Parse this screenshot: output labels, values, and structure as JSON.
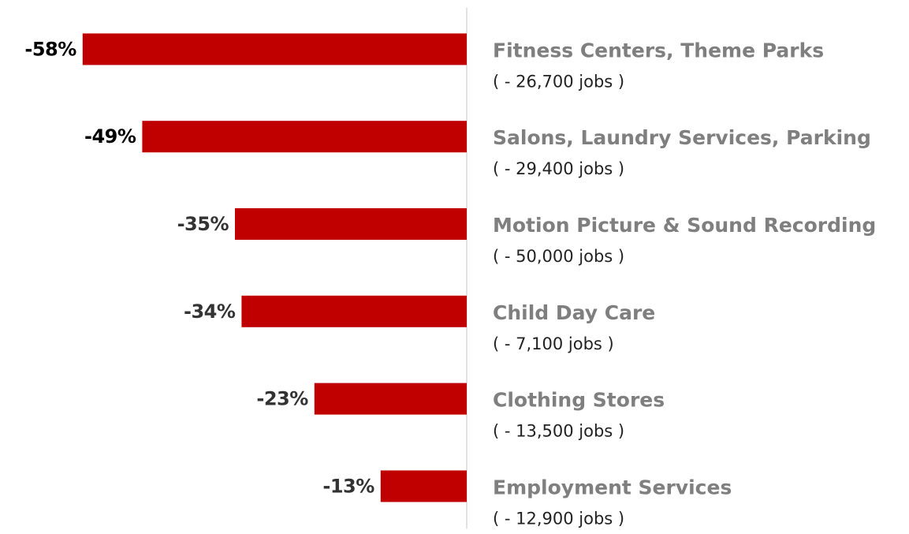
{
  "chart_data": {
    "type": "bar",
    "orientation": "horizontal",
    "categories": [
      "Fitness Centers, Theme Parks",
      "Salons, Laundry Services, Parking",
      "Motion Picture & Sound Recording",
      "Child Day Care",
      "Clothing Stores",
      "Employment Services"
    ],
    "sublabels": [
      "( - 26,700 jobs )",
      "( - 29,400 jobs )",
      "( - 50,000 jobs )",
      "( - 7,100 jobs )",
      "( - 13,500 jobs )",
      "( - 12,900 jobs )"
    ],
    "values": [
      -58,
      -49,
      -35,
      -34,
      -23,
      -13
    ],
    "value_labels": [
      "-58%",
      "-49%",
      "-35%",
      "-34%",
      "-23%",
      "-13%"
    ],
    "value_label_colors": [
      "#000000",
      "#000000",
      "#333333",
      "#333333",
      "#333333",
      "#333333"
    ],
    "color": "#c00000",
    "xlim": [
      -60,
      0
    ]
  }
}
